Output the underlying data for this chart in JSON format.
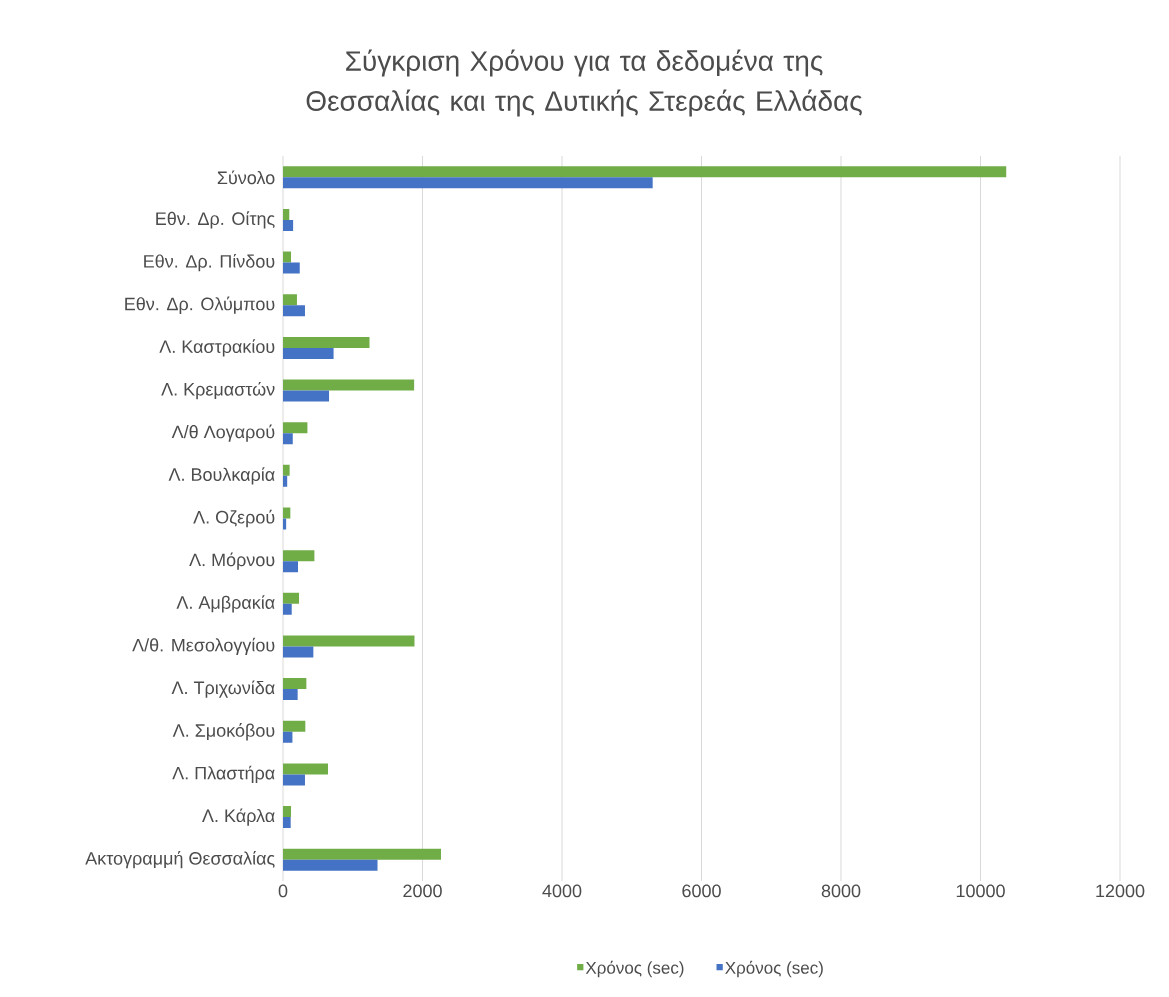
{
  "chart_data": {
    "type": "bar",
    "orientation": "horizontal",
    "title": "Σύγκριση Χρόνου για τα δεδομένα της Θεσσαλίας και της Δυτικής Στερεάς Ελλάδας",
    "categories": [
      "Σύνολο",
      "Εθν. Δρ. Οίτης",
      "Εθν. Δρ. Πίνδου",
      "Εθν. Δρ. Ολύμπου",
      "Λ. Καστρακίου",
      "Λ. Κρεμαστών",
      "Λ/θ Λογαρού",
      "Λ. Βουλκαρία",
      "Λ. Οζερού",
      "Λ. Μόρνου",
      "Λ. Αμβρακία",
      "Λ/θ. Μεσολογγίου",
      "Λ. Τριχωνίδα",
      "Λ. Σμοκόβου",
      "Λ. Πλαστήρα",
      "Λ. Κάρλα",
      "Ακτογραμμή Θεσσαλίας"
    ],
    "series": [
      {
        "name": "Χρόνος (sec)",
        "color": "#70ad47",
        "values": [
          10370,
          90,
          115,
          200,
          1240,
          1880,
          350,
          95,
          105,
          450,
          230,
          1885,
          335,
          320,
          645,
          115,
          2265
        ]
      },
      {
        "name": "Χρόνος (sec)",
        "color": "#4472c4",
        "values": [
          5300,
          145,
          240,
          315,
          725,
          660,
          140,
          60,
          45,
          215,
          125,
          435,
          210,
          135,
          315,
          110,
          1355
        ]
      }
    ],
    "xlim": [
      0,
      12000
    ],
    "xticks": [
      0,
      2000,
      4000,
      6000,
      8000,
      10000,
      12000
    ],
    "grid": "x",
    "legend": "bottom"
  }
}
